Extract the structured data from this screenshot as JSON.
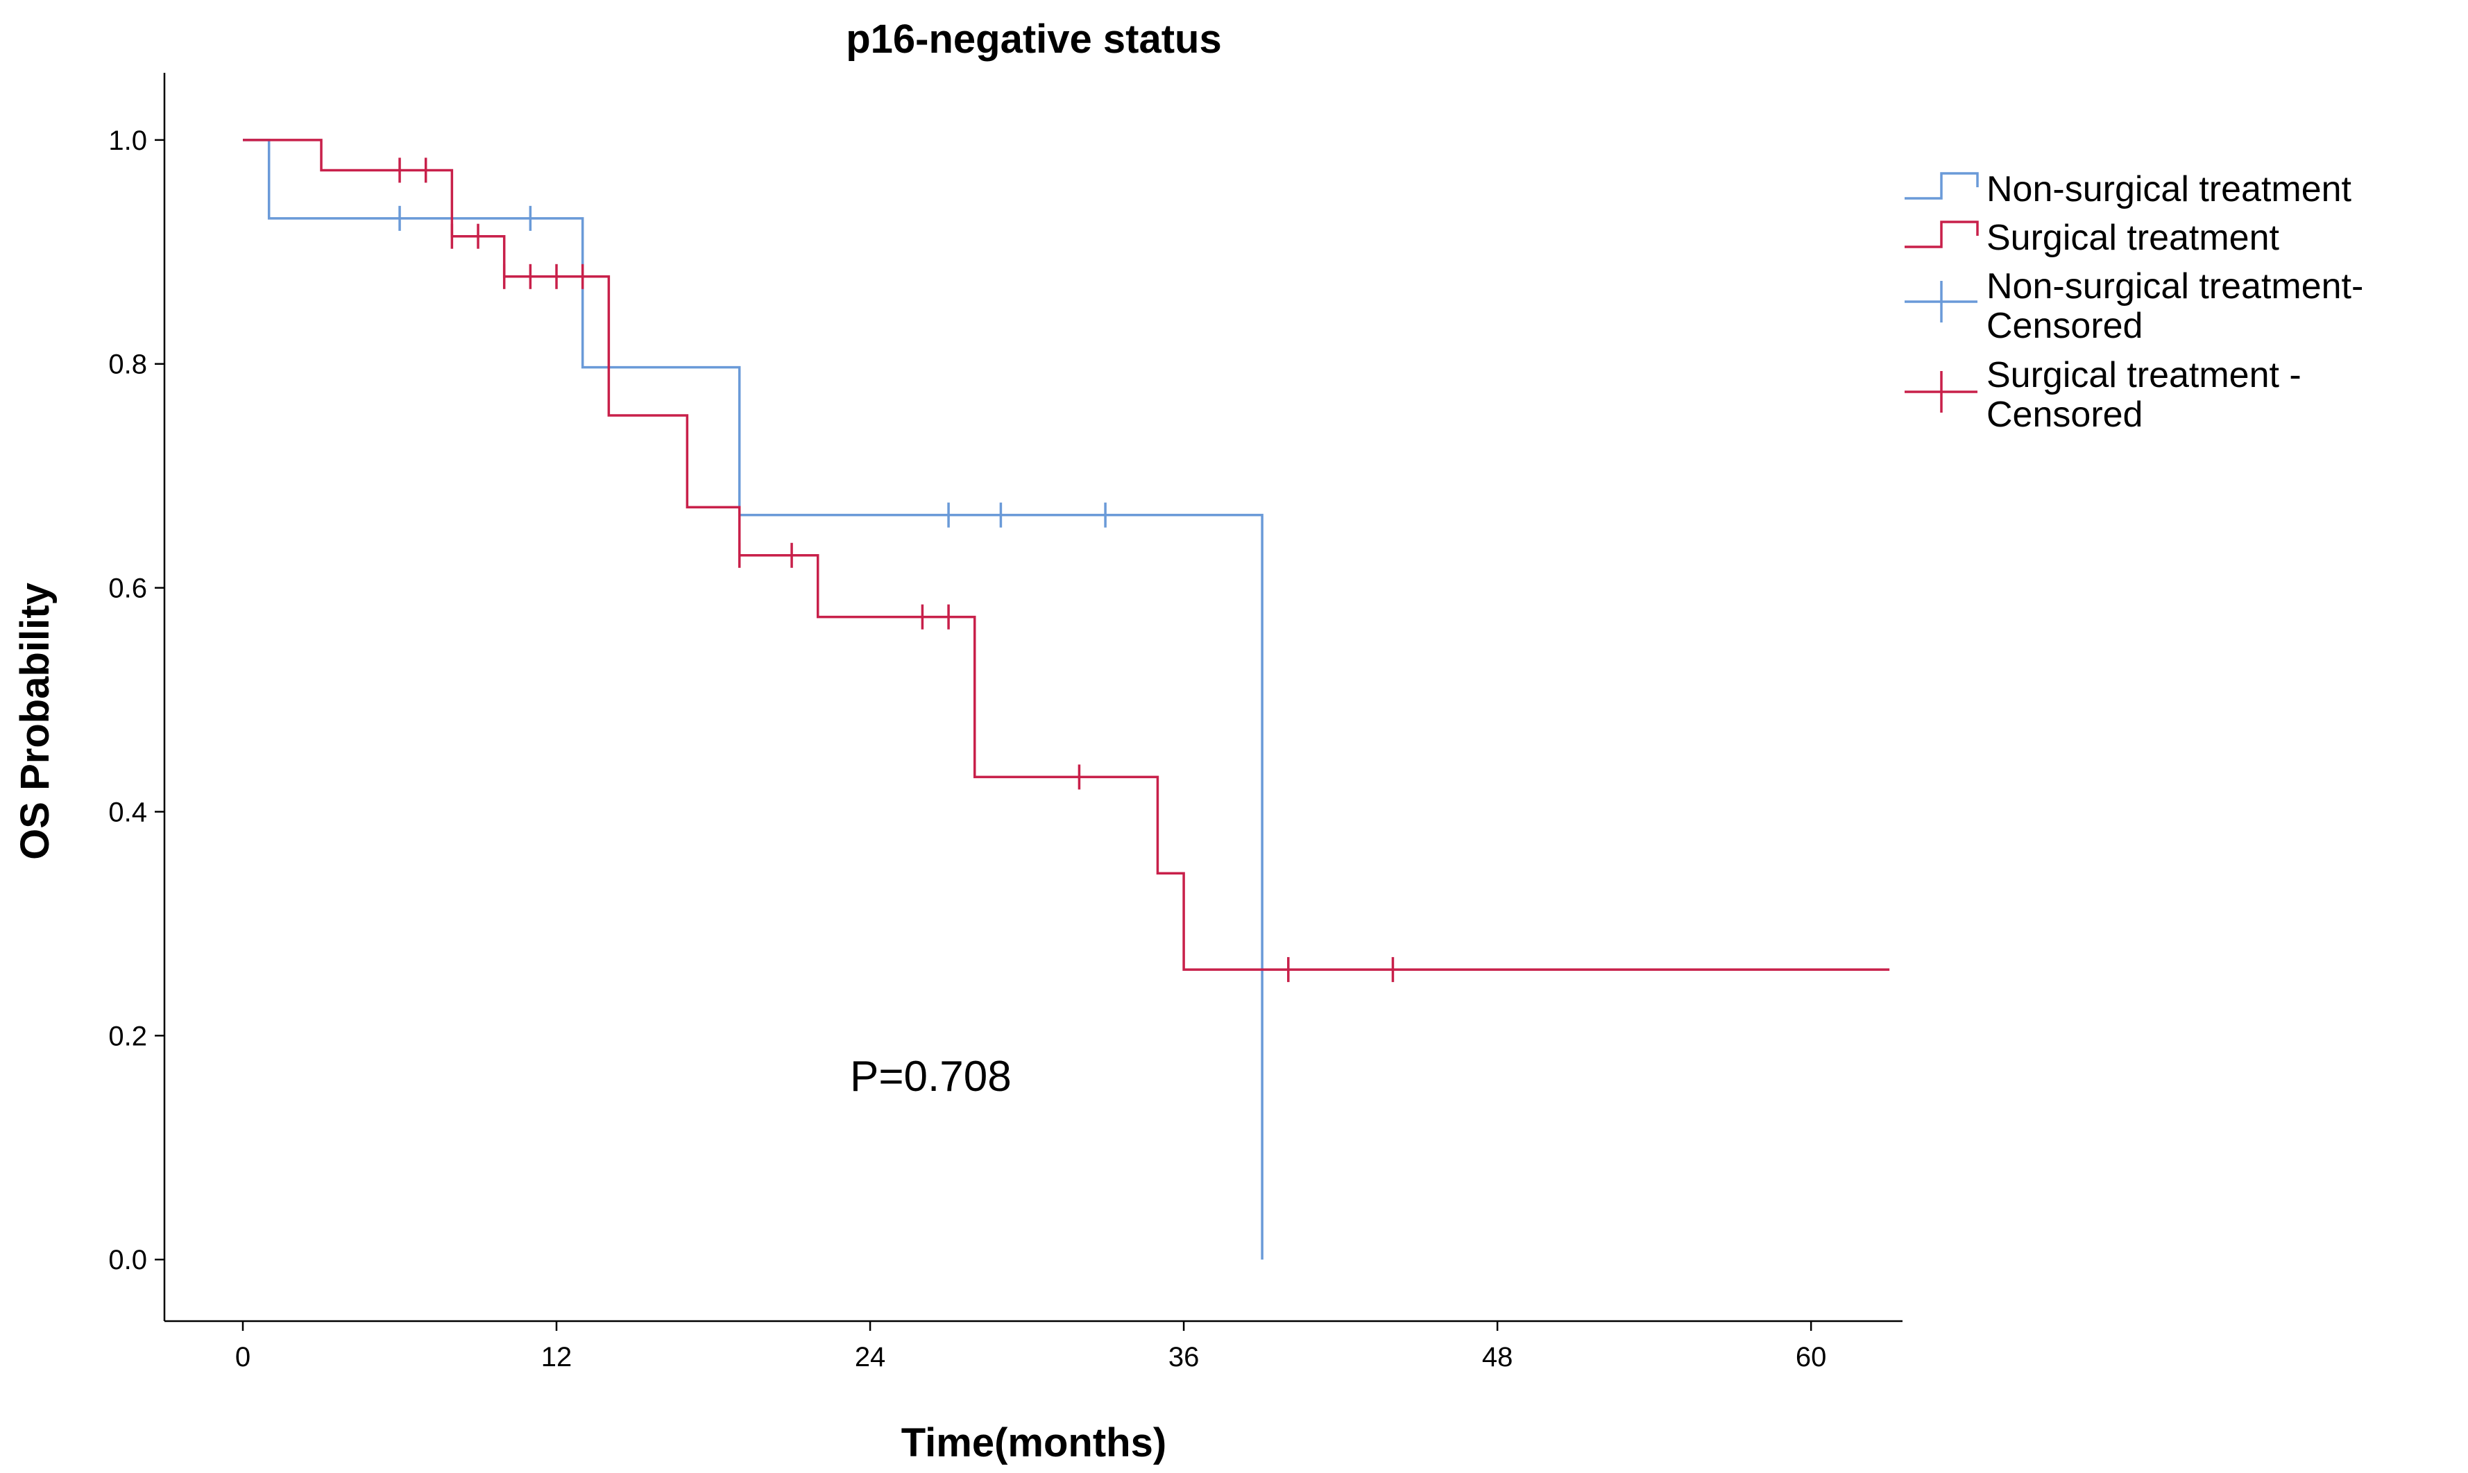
{
  "chart_data": {
    "type": "line",
    "subtype": "kaplan-meier",
    "title": "p16-negative status",
    "xlabel": "Time(months)",
    "ylabel": "OS Probability",
    "xlim": [
      -3,
      63.5
    ],
    "ylim": [
      -0.055,
      1.06
    ],
    "xticks": [
      0,
      12,
      24,
      36,
      48,
      60
    ],
    "yticks": [
      0.0,
      0.2,
      0.4,
      0.6,
      0.8,
      1.0
    ],
    "ytick_labels": [
      "0.0",
      "0.2",
      "0.4",
      "0.6",
      "0.8",
      "1.0"
    ],
    "grid": false,
    "legend_position": "top-right",
    "annotation": "P=0.708",
    "series": [
      {
        "name": "Non-surgical treatment",
        "color": "#6A9AD8",
        "steps": [
          [
            0,
            1.0
          ],
          [
            1,
            0.93
          ],
          [
            13,
            0.797
          ],
          [
            19,
            0.665
          ],
          [
            39,
            0.0
          ]
        ],
        "end_x": 39,
        "censored": [
          [
            6,
            0.93
          ],
          [
            11,
            0.93
          ],
          [
            27,
            0.665
          ],
          [
            29,
            0.665
          ],
          [
            33,
            0.665
          ]
        ]
      },
      {
        "name": "Surgical treatment",
        "color": "#C8204A",
        "steps": [
          [
            0,
            1.0
          ],
          [
            3,
            0.973
          ],
          [
            8,
            0.914
          ],
          [
            10,
            0.878
          ],
          [
            14,
            0.754
          ],
          [
            17,
            0.672
          ],
          [
            19,
            0.629
          ],
          [
            22,
            0.574
          ],
          [
            28,
            0.431
          ],
          [
            35,
            0.345
          ],
          [
            36,
            0.259
          ]
        ],
        "end_x": 63,
        "censored": [
          [
            6,
            0.973
          ],
          [
            7,
            0.973
          ],
          [
            8,
            0.914
          ],
          [
            9,
            0.914
          ],
          [
            10,
            0.878
          ],
          [
            11,
            0.878
          ],
          [
            12,
            0.878
          ],
          [
            13,
            0.878
          ],
          [
            19,
            0.629
          ],
          [
            21,
            0.629
          ],
          [
            26,
            0.574
          ],
          [
            27,
            0.574
          ],
          [
            32,
            0.431
          ],
          [
            40,
            0.259
          ],
          [
            44,
            0.259
          ]
        ]
      }
    ],
    "legend": [
      {
        "kind": "step",
        "color": "#6A9AD8",
        "lines": [
          "Non-surgical treatment"
        ]
      },
      {
        "kind": "step",
        "color": "#C8204A",
        "lines": [
          "Surgical treatment"
        ]
      },
      {
        "kind": "censor",
        "color": "#6A9AD8",
        "lines": [
          "Non-surgical treatment-",
          "Censored"
        ]
      },
      {
        "kind": "censor",
        "color": "#C8204A",
        "lines": [
          "Surgical treatment -",
          "Censored"
        ]
      }
    ]
  }
}
